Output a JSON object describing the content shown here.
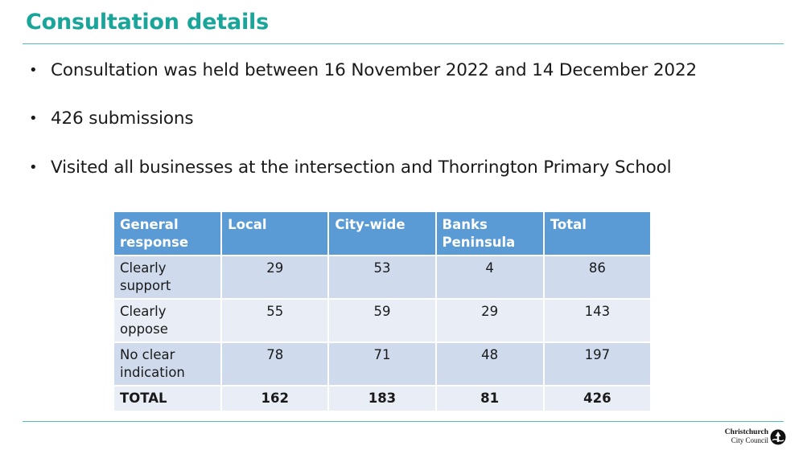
{
  "slide": {
    "title": "Consultation details"
  },
  "bullets": [
    {
      "marker": "•",
      "text": "Consultation was held between 16 November 2022 and 14 December 2022"
    },
    {
      "marker": "•",
      "text": "426 submissions"
    },
    {
      "marker": "•",
      "text": "Visited all businesses at the intersection and Thorrington Primary School"
    }
  ],
  "table": {
    "headers": [
      "General response",
      "Local",
      "City-wide",
      "Banks Peninsula",
      "Total"
    ],
    "rows": [
      {
        "label": "Clearly support",
        "values": [
          "29",
          "53",
          "4",
          "86"
        ]
      },
      {
        "label": "Clearly oppose",
        "values": [
          "55",
          "59",
          "29",
          "143"
        ]
      },
      {
        "label": "No clear indication",
        "values": [
          "78",
          "71",
          "48",
          "197"
        ]
      },
      {
        "label": "TOTAL",
        "values": [
          "162",
          "183",
          "81",
          "426"
        ]
      }
    ]
  },
  "logo": {
    "line1": "Christchurch",
    "line2": "City Council",
    "icon": "ccc-logo-icon"
  },
  "colors": {
    "title": "#1aa59a",
    "rule": "#4fc3b9",
    "header_bg": "#5b9bd5",
    "row_dark": "#cfdbed",
    "row_light": "#e8edf6"
  }
}
